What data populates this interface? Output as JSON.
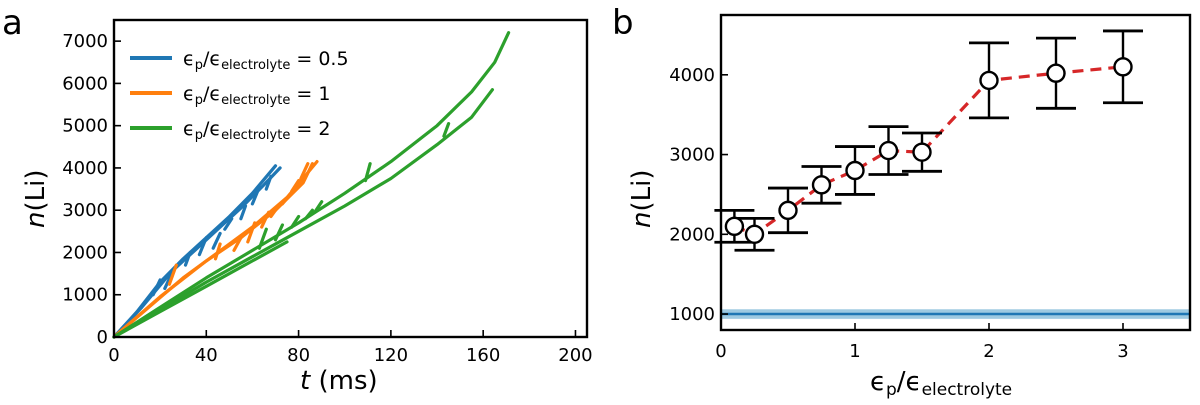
{
  "chart_data": [
    {
      "type": "line",
      "panel_label": "a",
      "xlabel_var": "t",
      "xlabel_unit": " (ms)",
      "ylabel_var": "n",
      "ylabel_unit": "(Li)",
      "xlim": [
        0,
        205
      ],
      "ylim": [
        0,
        7500
      ],
      "xticks": [
        0,
        40,
        80,
        120,
        160,
        200
      ],
      "yticks": [
        0,
        1000,
        2000,
        3000,
        4000,
        5000,
        6000,
        7000
      ],
      "legend_position": "top-left",
      "series": [
        {
          "name": "ϵp/ϵelectrolyte = 0.5",
          "legend_main": "ϵ",
          "legend_sub1": "p",
          "legend_mid": "/ϵ",
          "legend_sub2": "electrolyte",
          "legend_value": " = 0.5",
          "color": "#1f77b4",
          "lines": [
            [
              [
                0,
                0
              ],
              [
                10,
                600
              ],
              [
                20,
                1300
              ],
              [
                30,
                1850
              ],
              [
                40,
                2350
              ],
              [
                50,
                2850
              ],
              [
                60,
                3400
              ],
              [
                70,
                4050
              ]
            ],
            [
              [
                0,
                0
              ],
              [
                12,
                700
              ],
              [
                25,
                1550
              ],
              [
                35,
                2050
              ],
              [
                45,
                2550
              ],
              [
                55,
                3050
              ],
              [
                65,
                3600
              ],
              [
                72,
                4000
              ]
            ],
            [
              [
                17,
                1000
              ],
              [
                20,
                1350
              ]
            ],
            [
              [
                22,
                1150
              ],
              [
                25,
                1500
              ]
            ],
            [
              [
                31,
                1700
              ],
              [
                33,
                2000
              ]
            ],
            [
              [
                37,
                1950
              ],
              [
                40,
                2350
              ]
            ],
            [
              [
                43,
                2100
              ],
              [
                46,
                2450
              ]
            ],
            [
              [
                48,
                2550
              ],
              [
                51,
                2800
              ]
            ],
            [
              [
                55,
                2800
              ],
              [
                57,
                3100
              ]
            ],
            [
              [
                60,
                3150
              ],
              [
                63,
                3550
              ]
            ],
            [
              [
                66,
                3500
              ],
              [
                68,
                3800
              ]
            ]
          ]
        },
        {
          "name": "ϵp/ϵelectrolyte = 1",
          "legend_main": "ϵ",
          "legend_sub1": "p",
          "legend_mid": "/ϵ",
          "legend_sub2": "electrolyte",
          "legend_value": " = 1",
          "color": "#ff7f0e",
          "lines": [
            [
              [
                0,
                0
              ],
              [
                15,
                700
              ],
              [
                30,
                1400
              ],
              [
                45,
                2000
              ],
              [
                60,
                2600
              ],
              [
                75,
                3300
              ],
              [
                88,
                4150
              ]
            ],
            [
              [
                0,
                0
              ],
              [
                20,
                950
              ],
              [
                40,
                1800
              ],
              [
                55,
                2350
              ],
              [
                70,
                3000
              ],
              [
                82,
                3650
              ],
              [
                86,
                4100
              ]
            ],
            [
              [
                24,
                1250
              ],
              [
                27,
                1700
              ]
            ],
            [
              [
                44,
                1850
              ],
              [
                46,
                2200
              ]
            ],
            [
              [
                52,
                2050
              ],
              [
                55,
                2350
              ]
            ],
            [
              [
                58,
                2250
              ],
              [
                61,
                2700
              ]
            ],
            [
              [
                64,
                2600
              ],
              [
                67,
                2950
              ]
            ],
            [
              [
                68,
                2850
              ],
              [
                70,
                3000
              ]
            ],
            [
              [
                73,
                3150
              ],
              [
                76,
                3350
              ]
            ],
            [
              [
                77,
                3450
              ],
              [
                80,
                3700
              ]
            ],
            [
              [
                81,
                3750
              ],
              [
                84,
                4100
              ]
            ]
          ]
        },
        {
          "name": "ϵp/ϵelectrolyte = 2",
          "legend_main": "ϵ",
          "legend_sub1": "p",
          "legend_mid": "/ϵ",
          "legend_sub2": "electrolyte",
          "legend_value": " = 2",
          "color": "#2ca02c",
          "lines": [
            [
              [
                0,
                0
              ],
              [
                20,
                700
              ],
              [
                40,
                1400
              ],
              [
                60,
                2050
              ],
              [
                80,
                2700
              ],
              [
                100,
                3400
              ],
              [
                120,
                4150
              ],
              [
                140,
                5000
              ],
              [
                155,
                5800
              ],
              [
                165,
                6500
              ],
              [
                171,
                7200
              ]
            ],
            [
              [
                0,
                0
              ],
              [
                20,
                650
              ],
              [
                40,
                1300
              ],
              [
                60,
                1900
              ],
              [
                80,
                2500
              ],
              [
                100,
                3100
              ],
              [
                120,
                3750
              ],
              [
                140,
                4550
              ],
              [
                155,
                5200
              ],
              [
                164,
                5850
              ]
            ],
            [
              [
                0,
                0
              ],
              [
                20,
                600
              ],
              [
                40,
                1200
              ],
              [
                60,
                1800
              ],
              [
                75,
                2250
              ]
            ],
            [
              [
                63,
                2100
              ],
              [
                66,
                2550
              ]
            ],
            [
              [
                70,
                2300
              ],
              [
                73,
                2650
              ]
            ],
            [
              [
                77,
                2600
              ],
              [
                80,
                2850
              ]
            ],
            [
              [
                83,
                2800
              ],
              [
                86,
                3000
              ]
            ],
            [
              [
                87,
                2950
              ],
              [
                90,
                3200
              ]
            ],
            [
              [
                109,
                3700
              ],
              [
                111,
                4100
              ]
            ],
            [
              [
                143,
                4750
              ],
              [
                145,
                5050
              ]
            ]
          ]
        }
      ]
    },
    {
      "type": "line",
      "subtype": "errorbar",
      "panel_label": "b",
      "xlabel_main": "ϵ",
      "xlabel_sub1": "p",
      "xlabel_mid": "/ϵ",
      "xlabel_sub2": "electrolyte",
      "ylabel_var": "n",
      "ylabel_unit": "(Li)",
      "xlim": [
        0,
        3.5
      ],
      "ylim": [
        800,
        4750
      ],
      "xticks": [
        0,
        1,
        2,
        3
      ],
      "yticks": [
        1000,
        2000,
        3000,
        4000
      ],
      "points": [
        {
          "x": 0.1,
          "y": 2100,
          "err": 200
        },
        {
          "x": 0.25,
          "y": 2000,
          "err": 200
        },
        {
          "x": 0.5,
          "y": 2300,
          "err": 280
        },
        {
          "x": 0.75,
          "y": 2620,
          "err": 230
        },
        {
          "x": 1.0,
          "y": 2800,
          "err": 300
        },
        {
          "x": 1.25,
          "y": 3050,
          "err": 300
        },
        {
          "x": 1.5,
          "y": 3030,
          "err": 240
        },
        {
          "x": 2.0,
          "y": 3930,
          "err": 470
        },
        {
          "x": 2.5,
          "y": 4020,
          "err": 440
        },
        {
          "x": 3.0,
          "y": 4100,
          "err": 450
        }
      ],
      "line_color": "#d62728",
      "baseline": {
        "value": 1000,
        "color": "#1f77b4",
        "band_color": "#9ecae1",
        "band_halfwidth": 60
      }
    }
  ]
}
